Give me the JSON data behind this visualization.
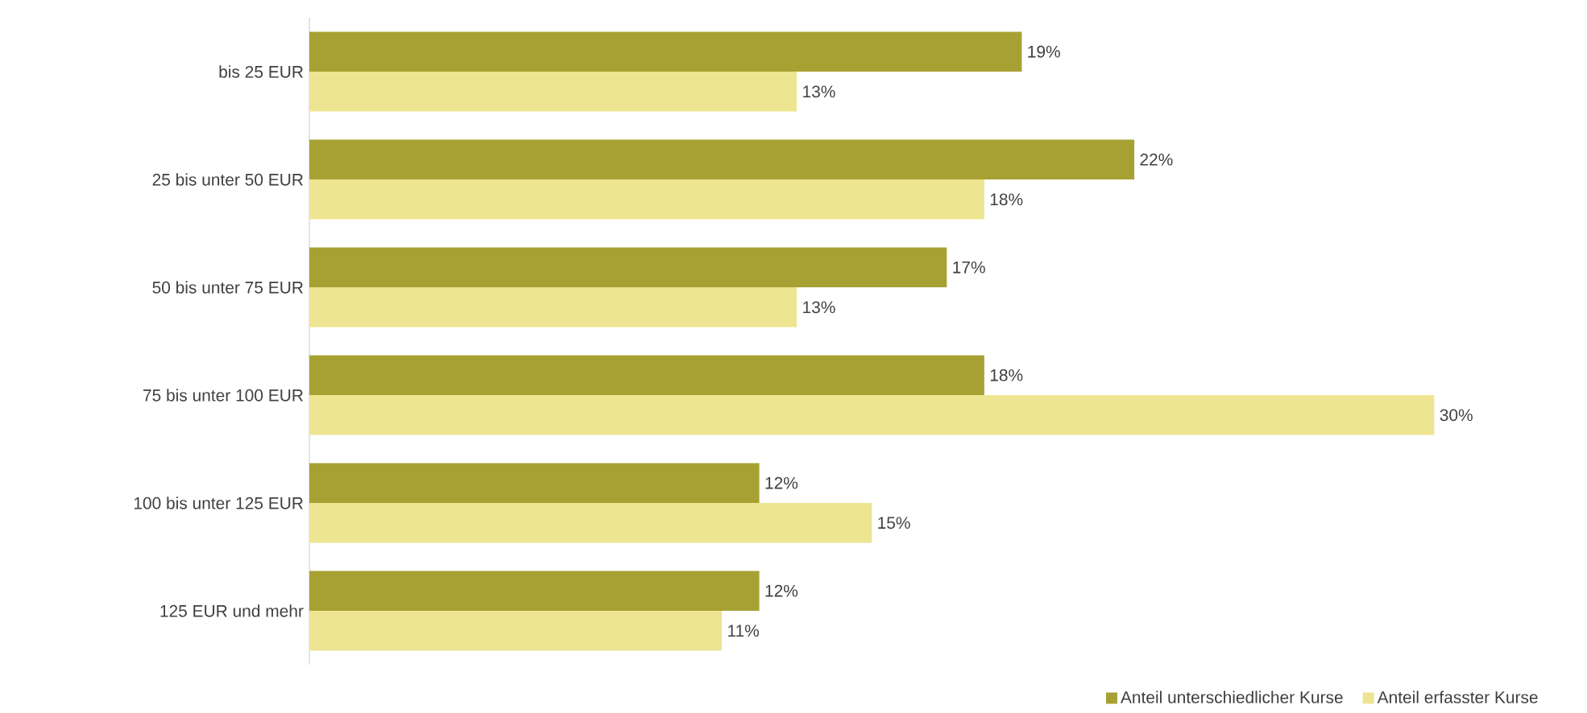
{
  "chart_data": {
    "type": "bar",
    "orientation": "horizontal",
    "categories": [
      "bis 25 EUR",
      "25 bis unter 50 EUR",
      "50 bis unter 75 EUR",
      "75 bis unter 100 EUR",
      "100 bis unter 125 EUR",
      "125 EUR und mehr"
    ],
    "series": [
      {
        "name": "Anteil unterschiedlicher Kurse",
        "color": "#a7a134",
        "values": [
          19,
          22,
          17,
          18,
          12,
          12
        ],
        "value_labels": [
          "19%",
          "22%",
          "17%",
          "18%",
          "12%",
          "12%"
        ]
      },
      {
        "name": "Anteil erfasster Kurse",
        "color": "#eee592",
        "values": [
          13,
          18,
          13,
          30,
          15,
          11
        ],
        "value_labels": [
          "13%",
          "18%",
          "13%",
          "30%",
          "15%",
          "11%"
        ]
      }
    ],
    "legend": "bottom right"
  }
}
